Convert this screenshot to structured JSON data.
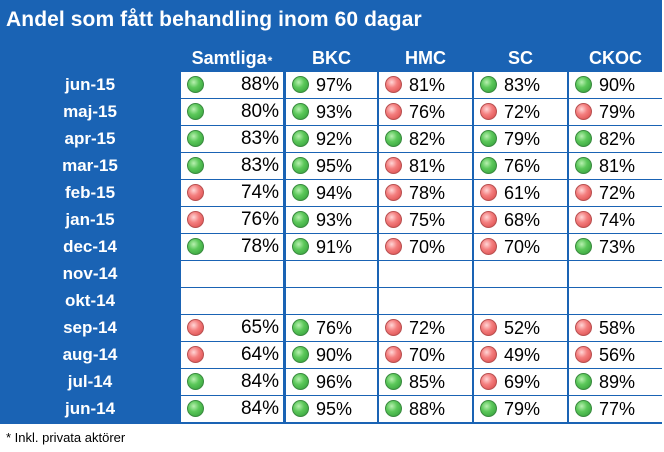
{
  "title": "Andel som fått behandling inom 60 dagar",
  "columns": [
    {
      "label": "Samtliga",
      "marker": "*"
    },
    {
      "label": "BKC",
      "marker": ""
    },
    {
      "label": "HMC",
      "marker": ""
    },
    {
      "label": "SC",
      "marker": ""
    },
    {
      "label": "CKOC",
      "marker": ""
    }
  ],
  "colors": {
    "green": "#4cbb4c",
    "red": "#ee6b6b",
    "panel": "#1a63b4"
  },
  "rows": [
    {
      "label": "jun-15",
      "cells": [
        {
          "v": "88%",
          "s": "green"
        },
        {
          "v": "97%",
          "s": "green"
        },
        {
          "v": "81%",
          "s": "red"
        },
        {
          "v": "83%",
          "s": "green"
        },
        {
          "v": "90%",
          "s": "green"
        }
      ]
    },
    {
      "label": "maj-15",
      "cells": [
        {
          "v": "80%",
          "s": "green"
        },
        {
          "v": "93%",
          "s": "green"
        },
        {
          "v": "76%",
          "s": "red"
        },
        {
          "v": "72%",
          "s": "red"
        },
        {
          "v": "79%",
          "s": "red"
        }
      ]
    },
    {
      "label": "apr-15",
      "cells": [
        {
          "v": "83%",
          "s": "green"
        },
        {
          "v": "92%",
          "s": "green"
        },
        {
          "v": "82%",
          "s": "green"
        },
        {
          "v": "79%",
          "s": "green"
        },
        {
          "v": "82%",
          "s": "green"
        }
      ]
    },
    {
      "label": "mar-15",
      "cells": [
        {
          "v": "83%",
          "s": "green"
        },
        {
          "v": "95%",
          "s": "green"
        },
        {
          "v": "81%",
          "s": "red"
        },
        {
          "v": "76%",
          "s": "green"
        },
        {
          "v": "81%",
          "s": "green"
        }
      ]
    },
    {
      "label": "feb-15",
      "cells": [
        {
          "v": "74%",
          "s": "red"
        },
        {
          "v": "94%",
          "s": "green"
        },
        {
          "v": "78%",
          "s": "red"
        },
        {
          "v": "61%",
          "s": "red"
        },
        {
          "v": "72%",
          "s": "red"
        }
      ]
    },
    {
      "label": "jan-15",
      "cells": [
        {
          "v": "76%",
          "s": "red"
        },
        {
          "v": "93%",
          "s": "green"
        },
        {
          "v": "75%",
          "s": "red"
        },
        {
          "v": "68%",
          "s": "red"
        },
        {
          "v": "74%",
          "s": "red"
        }
      ]
    },
    {
      "label": "dec-14",
      "cells": [
        {
          "v": "78%",
          "s": "green"
        },
        {
          "v": "91%",
          "s": "green"
        },
        {
          "v": "70%",
          "s": "red"
        },
        {
          "v": "70%",
          "s": "red"
        },
        {
          "v": "73%",
          "s": "green"
        }
      ]
    },
    {
      "label": "nov-14",
      "cells": [
        {
          "v": "",
          "s": ""
        },
        {
          "v": "",
          "s": ""
        },
        {
          "v": "",
          "s": ""
        },
        {
          "v": "",
          "s": ""
        },
        {
          "v": "",
          "s": ""
        }
      ]
    },
    {
      "label": "okt-14",
      "cells": [
        {
          "v": "",
          "s": ""
        },
        {
          "v": "",
          "s": ""
        },
        {
          "v": "",
          "s": ""
        },
        {
          "v": "",
          "s": ""
        },
        {
          "v": "",
          "s": ""
        }
      ]
    },
    {
      "label": "sep-14",
      "cells": [
        {
          "v": "65%",
          "s": "red"
        },
        {
          "v": "76%",
          "s": "green"
        },
        {
          "v": "72%",
          "s": "red"
        },
        {
          "v": "52%",
          "s": "red"
        },
        {
          "v": "58%",
          "s": "red"
        }
      ]
    },
    {
      "label": "aug-14",
      "cells": [
        {
          "v": "64%",
          "s": "red"
        },
        {
          "v": "90%",
          "s": "green"
        },
        {
          "v": "70%",
          "s": "red"
        },
        {
          "v": "49%",
          "s": "red"
        },
        {
          "v": "56%",
          "s": "red"
        }
      ]
    },
    {
      "label": "jul-14",
      "cells": [
        {
          "v": "84%",
          "s": "green"
        },
        {
          "v": "96%",
          "s": "green"
        },
        {
          "v": "85%",
          "s": "green"
        },
        {
          "v": "69%",
          "s": "red"
        },
        {
          "v": "89%",
          "s": "green"
        }
      ]
    },
    {
      "label": "jun-14",
      "cells": [
        {
          "v": "84%",
          "s": "green"
        },
        {
          "v": "95%",
          "s": "green"
        },
        {
          "v": "88%",
          "s": "green"
        },
        {
          "v": "79%",
          "s": "green"
        },
        {
          "v": "77%",
          "s": "green"
        }
      ]
    }
  ],
  "footnote": "* Inkl. privata aktörer"
}
